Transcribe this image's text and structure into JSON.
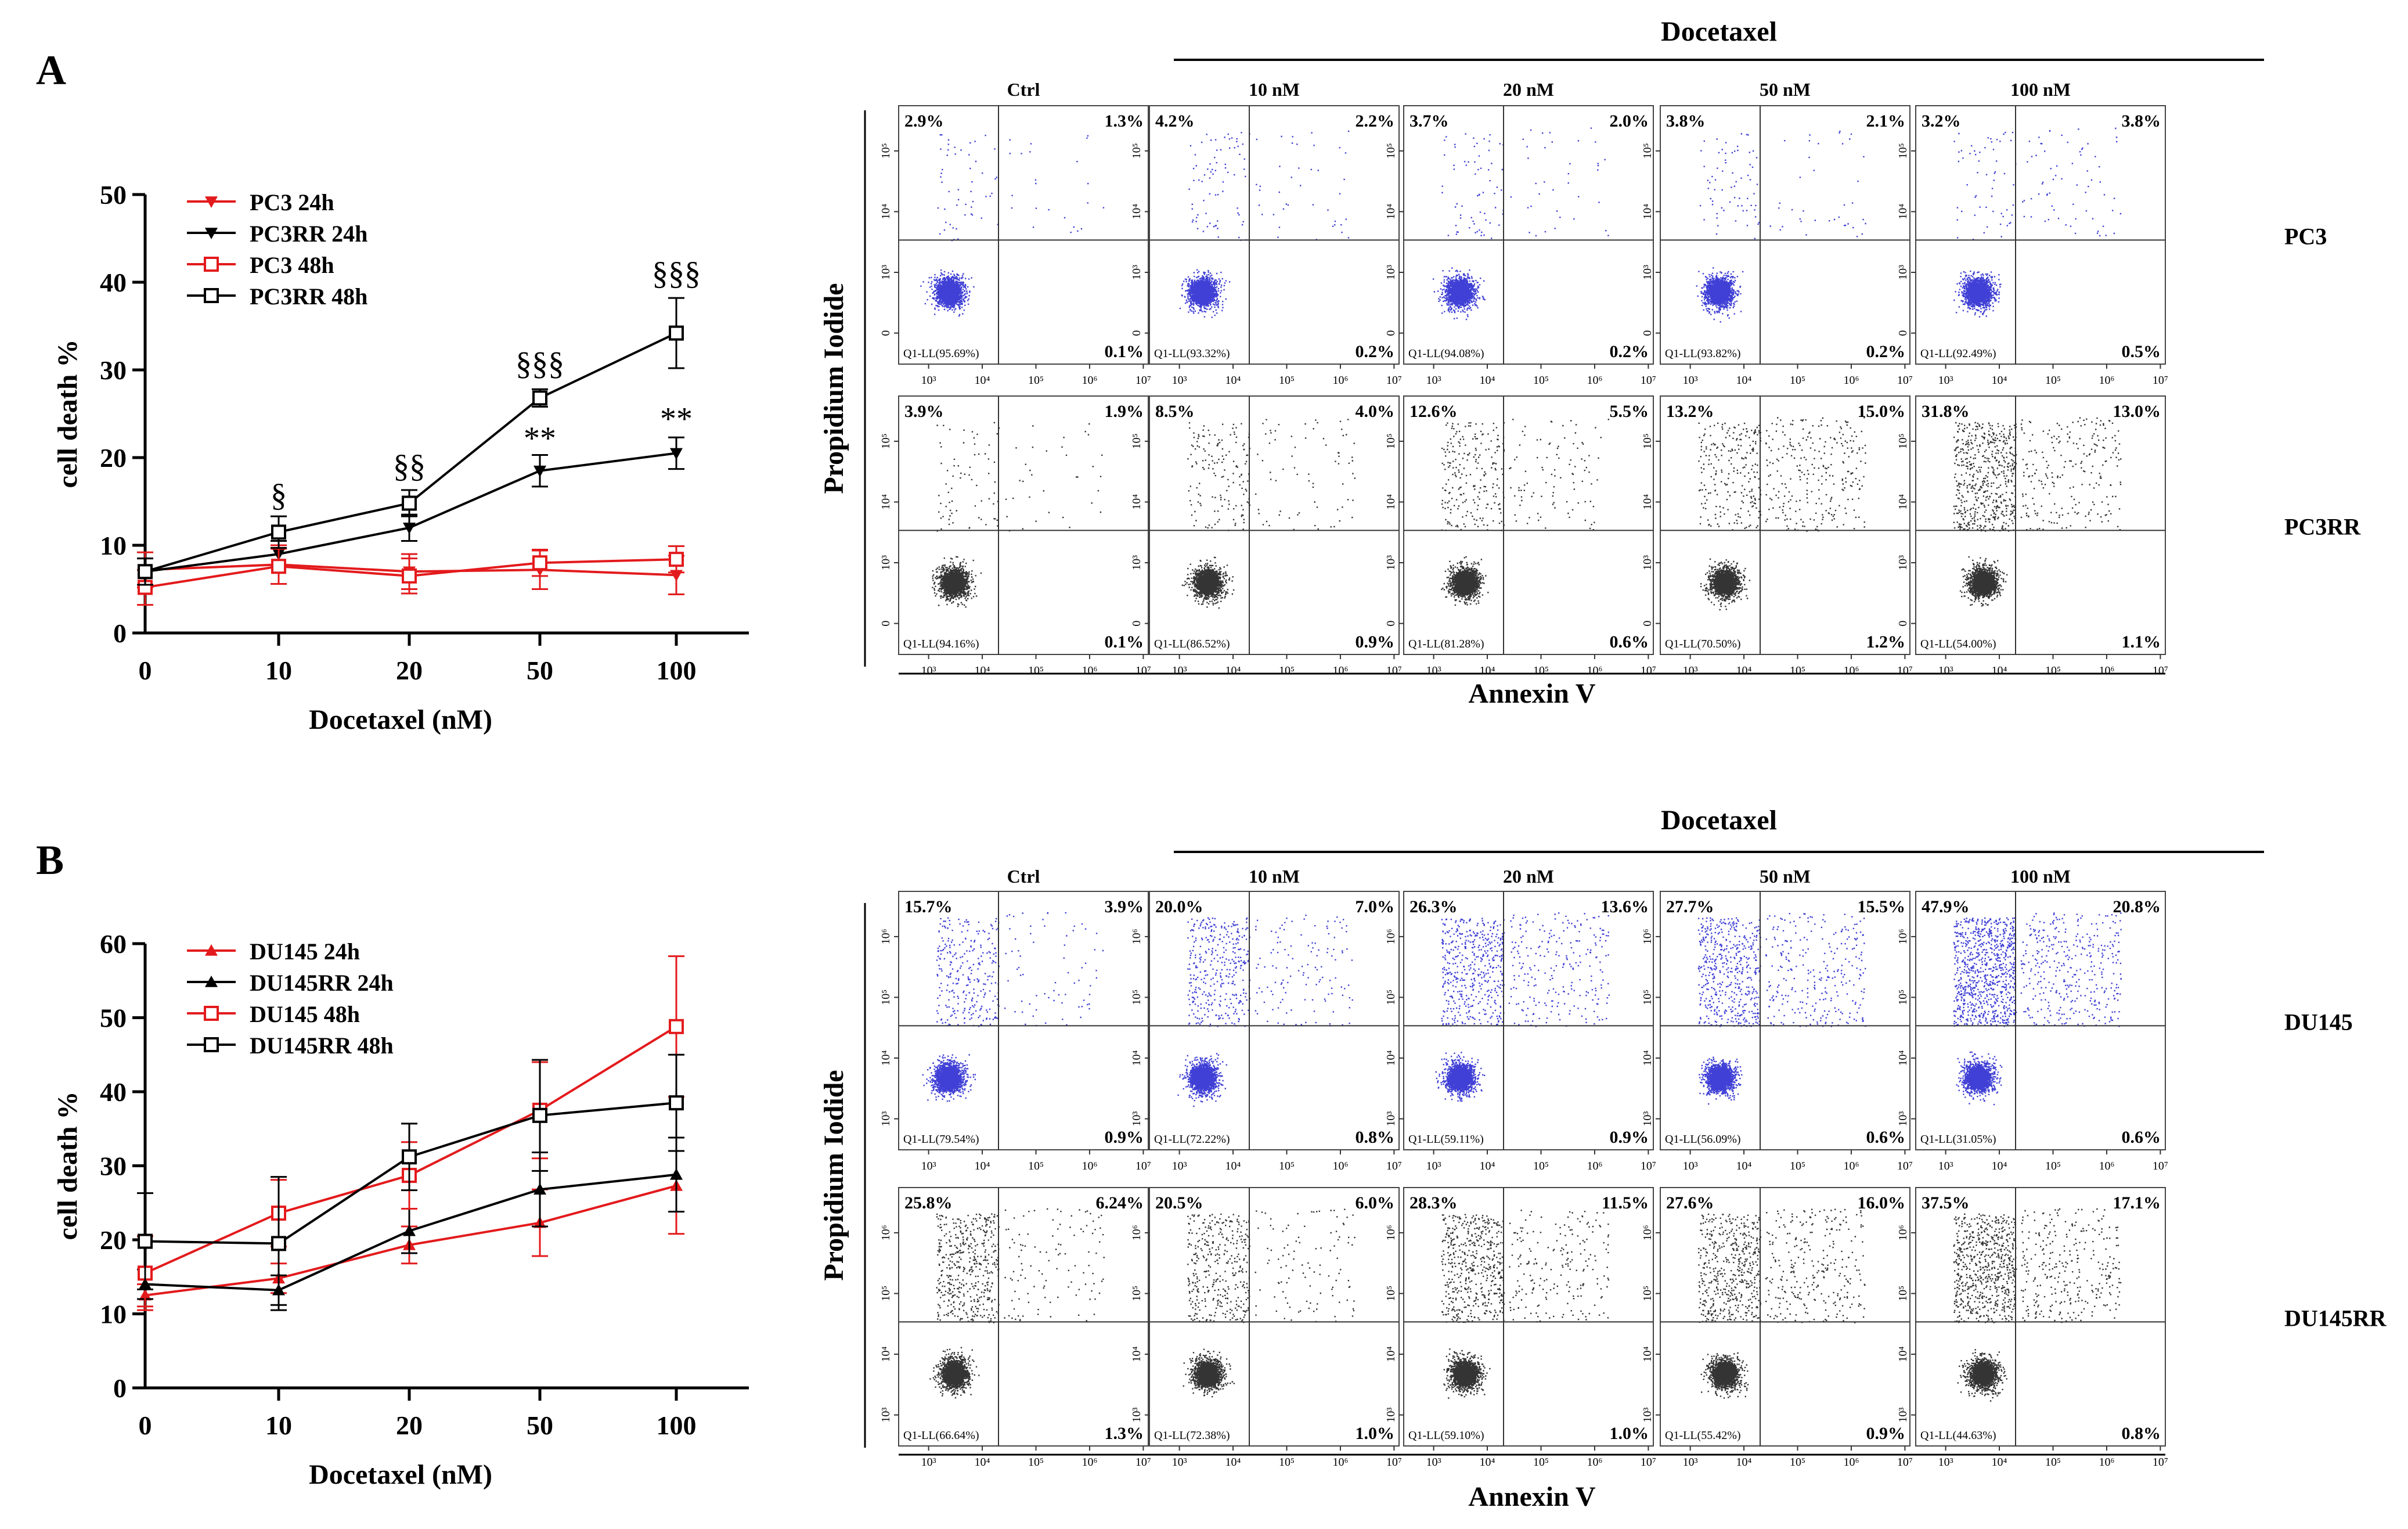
{
  "panels": [
    {
      "letter": "A",
      "line_chart": {
        "type": "line",
        "ylabel": "cell death %",
        "xlabel": "Docetaxel (nM)",
        "ylim": [
          0,
          50
        ],
        "yticks": [
          0,
          10,
          20,
          30,
          40,
          50
        ],
        "categories": [
          "0",
          "10",
          "20",
          "50",
          "100"
        ],
        "series": [
          {
            "name": "PC3 24h",
            "color": "#e31a1c",
            "marker": "triangle-down",
            "values": [
              7.2,
              7.8,
              7.0,
              7.2,
              6.6
            ],
            "errors": [
              2.0,
              2.2,
              2.0,
              2.2,
              2.2
            ]
          },
          {
            "name": "PC3RR 24h",
            "color": "#000000",
            "marker": "triangle-down",
            "values": [
              7.0,
              9.0,
              12.0,
              18.5,
              20.5
            ],
            "errors": [
              1.5,
              1.5,
              1.5,
              1.8,
              1.8
            ]
          },
          {
            "name": "PC3 48h",
            "color": "#e31a1c",
            "marker": "square",
            "values": [
              5.2,
              7.6,
              6.5,
              8.0,
              8.4
            ],
            "errors": [
              2.0,
              2.0,
              2.0,
              1.5,
              1.5
            ]
          },
          {
            "name": "PC3RR 48h",
            "color": "#000000",
            "marker": "square",
            "values": [
              7.0,
              11.5,
              14.8,
              26.8,
              34.2
            ],
            "errors": [
              1.5,
              1.8,
              1.5,
              1.0,
              4.0
            ]
          }
        ],
        "annotations": [
          {
            "text": "§",
            "category": "10",
            "value": 14.5
          },
          {
            "text": "§§",
            "category": "20",
            "value": 17.8
          },
          {
            "text": "§§§",
            "category": "50",
            "value": 29.5
          },
          {
            "text": "**",
            "category": "50",
            "value": 21.0
          },
          {
            "text": "§§§",
            "category": "100",
            "value": 39.8
          },
          {
            "text": "**",
            "category": "100",
            "value": 23.2
          }
        ]
      },
      "flow": {
        "title": "Docetaxel",
        "columns": [
          "Ctrl",
          "10 nM",
          "20 nM",
          "50 nM",
          "100 nM"
        ],
        "ylabel": "Propidium Iodide",
        "xlabel": "Annexin V",
        "xticks": [
          "10³",
          "10⁴",
          "10⁵",
          "10⁶",
          "10⁷"
        ],
        "yticks": [
          "0",
          "10³",
          "10⁴",
          "10⁵"
        ],
        "rows": [
          {
            "name": "PC3",
            "color": "#1f1fcf",
            "plots": [
              {
                "ul": "2.9%",
                "ur": "1.3%",
                "lr": "0.1%",
                "ll": "Q1-LL(95.69%)"
              },
              {
                "ul": "4.2%",
                "ur": "2.2%",
                "lr": "0.2%",
                "ll": "Q1-LL(93.32%)"
              },
              {
                "ul": "3.7%",
                "ur": "2.0%",
                "lr": "0.2%",
                "ll": "Q1-LL(94.08%)"
              },
              {
                "ul": "3.8%",
                "ur": "2.1%",
                "lr": "0.2%",
                "ll": "Q1-LL(93.82%)"
              },
              {
                "ul": "3.2%",
                "ur": "3.8%",
                "lr": "0.5%",
                "ll": "Q1-LL(92.49%)"
              }
            ]
          },
          {
            "name": "PC3RR",
            "color": "#111111",
            "plots": [
              {
                "ul": "3.9%",
                "ur": "1.9%",
                "lr": "0.1%",
                "ll": "Q1-LL(94.16%)"
              },
              {
                "ul": "8.5%",
                "ur": "4.0%",
                "lr": "0.9%",
                "ll": "Q1-LL(86.52%)"
              },
              {
                "ul": "12.6%",
                "ur": "5.5%",
                "lr": "0.6%",
                "ll": "Q1-LL(81.28%)"
              },
              {
                "ul": "13.2%",
                "ur": "15.0%",
                "lr": "1.2%",
                "ll": "Q1-LL(70.50%)"
              },
              {
                "ul": "31.8%",
                "ur": "13.0%",
                "lr": "1.1%",
                "ll": "Q1-LL(54.00%)"
              }
            ]
          }
        ]
      }
    },
    {
      "letter": "B",
      "line_chart": {
        "type": "line",
        "ylabel": "cell death %",
        "xlabel": "Docetaxel (nM)",
        "ylim": [
          0,
          60
        ],
        "yticks": [
          0,
          10,
          20,
          30,
          40,
          50,
          60
        ],
        "categories": [
          "0",
          "10",
          "20",
          "50",
          "100"
        ],
        "series": [
          {
            "name": "DU145 24h",
            "color": "#e31a1c",
            "marker": "triangle-up",
            "values": [
              12.5,
              14.8,
              19.3,
              22.3,
              27.3
            ],
            "errors": [
              1.5,
              2.0,
              2.5,
              4.5,
              6.5
            ]
          },
          {
            "name": "DU145RR 24h",
            "color": "#000000",
            "marker": "triangle-up",
            "values": [
              14.0,
              13.2,
              21.2,
              26.8,
              28.8
            ],
            "errors": [
              2.0,
              2.0,
              3.0,
              5.0,
              5.0
            ]
          },
          {
            "name": "DU145 48h",
            "color": "#e31a1c",
            "marker": "square",
            "values": [
              15.5,
              23.6,
              28.7,
              37.5,
              48.8
            ],
            "errors": [
              5.0,
              4.5,
              4.5,
              6.5,
              9.5
            ]
          },
          {
            "name": "DU145RR 48h",
            "color": "#000000",
            "marker": "square",
            "values": [
              19.8,
              19.5,
              31.2,
              36.8,
              38.5
            ],
            "errors": [
              6.5,
              9.0,
              4.5,
              7.5,
              6.5
            ]
          }
        ],
        "annotations": []
      },
      "flow": {
        "title": "Docetaxel",
        "columns": [
          "Ctrl",
          "10 nM",
          "20 nM",
          "50 nM",
          "100 nM"
        ],
        "ylabel": "Propidium Iodide",
        "xlabel": "Annexin V",
        "xticks": [
          "10³",
          "10⁴",
          "10⁵",
          "10⁶",
          "10⁷"
        ],
        "yticks": [
          "10³",
          "10⁴",
          "10⁵",
          "10⁶"
        ],
        "rows": [
          {
            "name": "DU145",
            "color": "#1f1fcf",
            "plots": [
              {
                "ul": "15.7%",
                "ur": "3.9%",
                "lr": "0.9%",
                "ll": "Q1-LL(79.54%)"
              },
              {
                "ul": "20.0%",
                "ur": "7.0%",
                "lr": "0.8%",
                "ll": "Q1-LL(72.22%)"
              },
              {
                "ul": "26.3%",
                "ur": "13.6%",
                "lr": "0.9%",
                "ll": "Q1-LL(59.11%)"
              },
              {
                "ul": "27.7%",
                "ur": "15.5%",
                "lr": "0.6%",
                "ll": "Q1-LL(56.09%)"
              },
              {
                "ul": "47.9%",
                "ur": "20.8%",
                "lr": "0.6%",
                "ll": "Q1-LL(31.05%)"
              }
            ]
          },
          {
            "name": "DU145RR",
            "color": "#111111",
            "plots": [
              {
                "ul": "25.8%",
                "ur": "6.24%",
                "lr": "1.3%",
                "ll": "Q1-LL(66.64%)"
              },
              {
                "ul": "20.5%",
                "ur": "6.0%",
                "lr": "1.0%",
                "ll": "Q1-LL(72.38%)"
              },
              {
                "ul": "28.3%",
                "ur": "11.5%",
                "lr": "1.0%",
                "ll": "Q1-LL(59.10%)"
              },
              {
                "ul": "27.6%",
                "ur": "16.0%",
                "lr": "0.9%",
                "ll": "Q1-LL(55.42%)"
              },
              {
                "ul": "37.5%",
                "ur": "17.1%",
                "lr": "0.8%",
                "ll": "Q1-LL(44.63%)"
              }
            ]
          }
        ]
      }
    }
  ]
}
